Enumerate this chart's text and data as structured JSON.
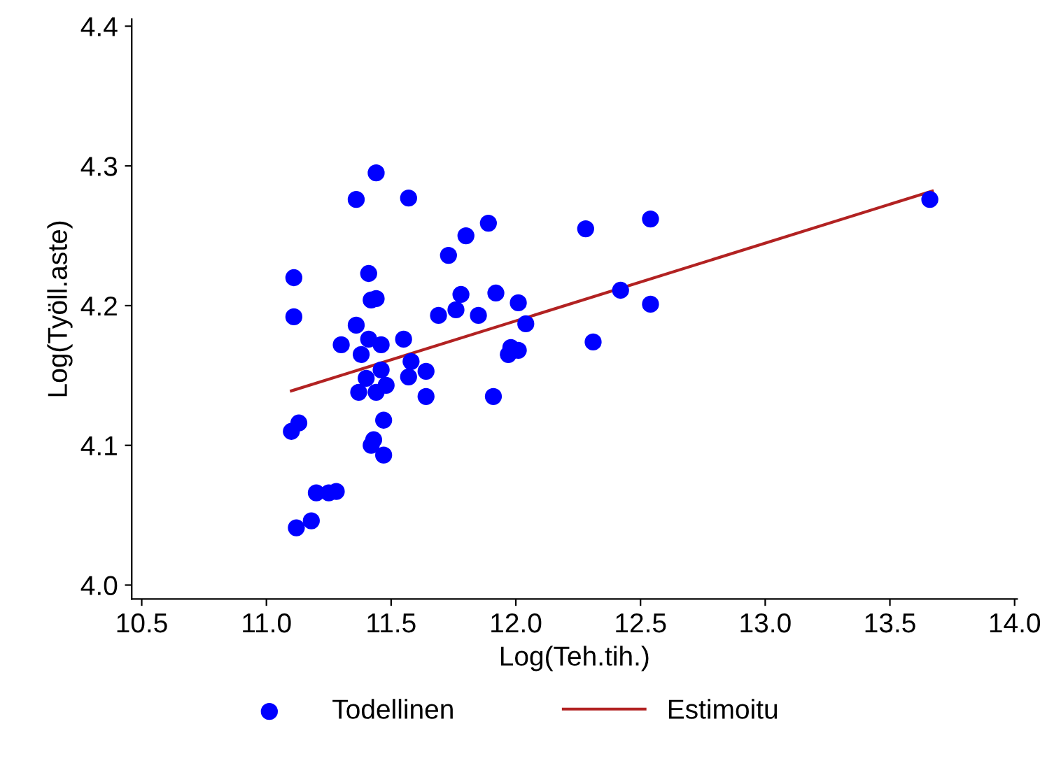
{
  "chart_data": {
    "type": "scatter",
    "xlabel": "Log(Teh.tih.)",
    "ylabel": "Log(Työll.aste)",
    "xlim": [
      10.46,
      14.01
    ],
    "ylim": [
      3.99,
      4.405
    ],
    "xticks": [
      10.5,
      {
        "value": 11,
        "label": "11.0"
      },
      11.5,
      {
        "value": 12,
        "label": "12.0"
      },
      12.5,
      {
        "value": 13,
        "label": "13.0"
      },
      13.5,
      {
        "value": 14,
        "label": "14.0"
      }
    ],
    "yticks": [
      {
        "value": 4,
        "label": "4.0"
      },
      4.1,
      4.2,
      4.3,
      4.4
    ],
    "grid": false,
    "legend": "bottom",
    "series": [
      {
        "name": "Todellinen",
        "marker": "circle",
        "color": "#0000ff",
        "x": [
          11.11,
          11.11,
          11.1,
          11.13,
          11.12,
          11.18,
          11.2,
          11.25,
          11.28,
          11.44,
          11.36,
          11.57,
          11.41,
          11.42,
          11.44,
          11.36,
          11.3,
          11.41,
          11.46,
          11.38,
          11.55,
          11.46,
          11.4,
          11.37,
          11.44,
          11.48,
          11.58,
          11.57,
          11.64,
          11.64,
          11.47,
          11.43,
          11.42,
          11.47,
          11.69,
          11.73,
          11.8,
          11.89,
          11.78,
          11.76,
          11.85,
          11.92,
          12.01,
          12.04,
          11.98,
          12.01,
          11.97,
          11.91,
          12.28,
          12.54,
          12.42,
          12.54,
          12.31,
          13.66
        ],
        "values": [
          4.22,
          4.192,
          4.11,
          4.116,
          4.041,
          4.046,
          4.066,
          4.066,
          4.067,
          4.295,
          4.276,
          4.277,
          4.223,
          4.204,
          4.205,
          4.186,
          4.172,
          4.176,
          4.172,
          4.165,
          4.176,
          4.154,
          4.148,
          4.138,
          4.138,
          4.143,
          4.16,
          4.149,
          4.153,
          4.135,
          4.118,
          4.104,
          4.1,
          4.093,
          4.193,
          4.236,
          4.25,
          4.259,
          4.208,
          4.197,
          4.193,
          4.209,
          4.202,
          4.187,
          4.17,
          4.168,
          4.165,
          4.135,
          4.255,
          4.262,
          4.211,
          4.201,
          4.174,
          4.276
        ]
      },
      {
        "name": "Estimoitu",
        "type": "line",
        "marker": "none",
        "line_style": "solid",
        "color": "#b22222",
        "x": [
          11.1,
          13.67
        ],
        "values": [
          4.139,
          4.282
        ]
      }
    ]
  }
}
